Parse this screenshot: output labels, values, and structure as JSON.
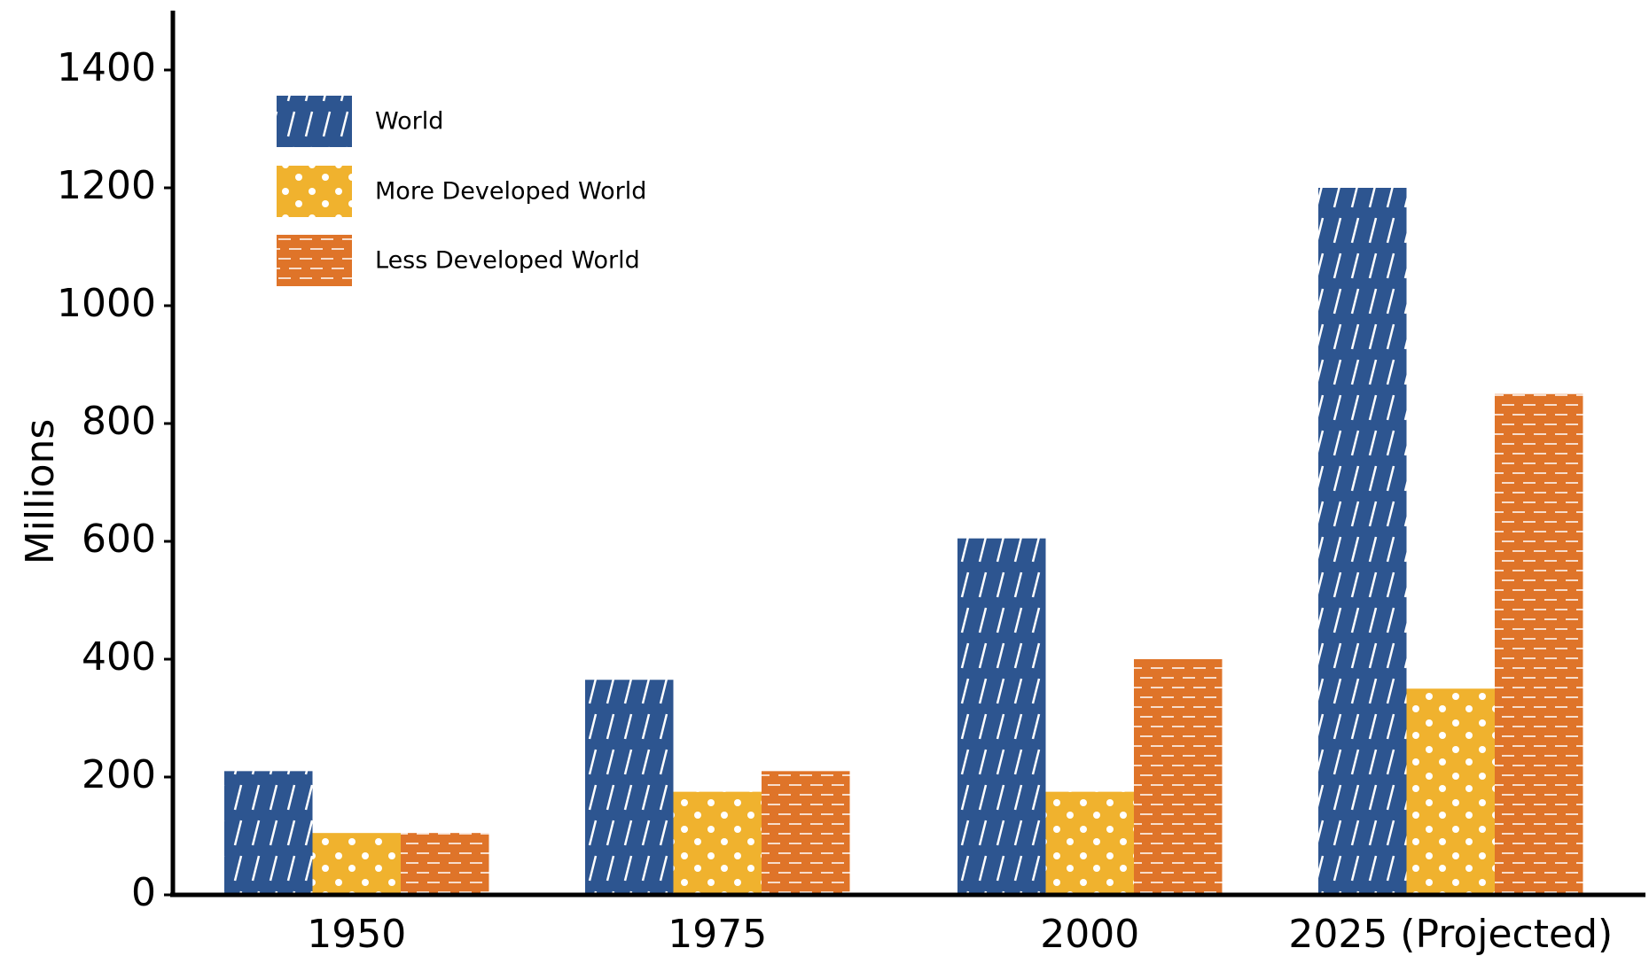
{
  "chart_data": {
    "type": "bar",
    "title": "",
    "xlabel": "",
    "ylabel": "Millions",
    "ylim": [
      0,
      1500
    ],
    "yticks": [
      0,
      200,
      400,
      600,
      800,
      1000,
      1200,
      1400
    ],
    "categories": [
      "1950",
      "1975",
      "2000",
      "2025 (Projected)"
    ],
    "series": [
      {
        "name": "World",
        "values": [
          210,
          365,
          605,
          1200
        ],
        "color": "#2d5590",
        "pattern": "diagonal-lines"
      },
      {
        "name": "More Developed World",
        "values": [
          105,
          175,
          175,
          350
        ],
        "color": "#f0b22e",
        "pattern": "dots"
      },
      {
        "name": "Less Developed World",
        "values": [
          105,
          210,
          400,
          850
        ],
        "color": "#df7429",
        "pattern": "dashed-horizontal-lines"
      }
    ],
    "legend_position": "top-left",
    "grid": false
  }
}
